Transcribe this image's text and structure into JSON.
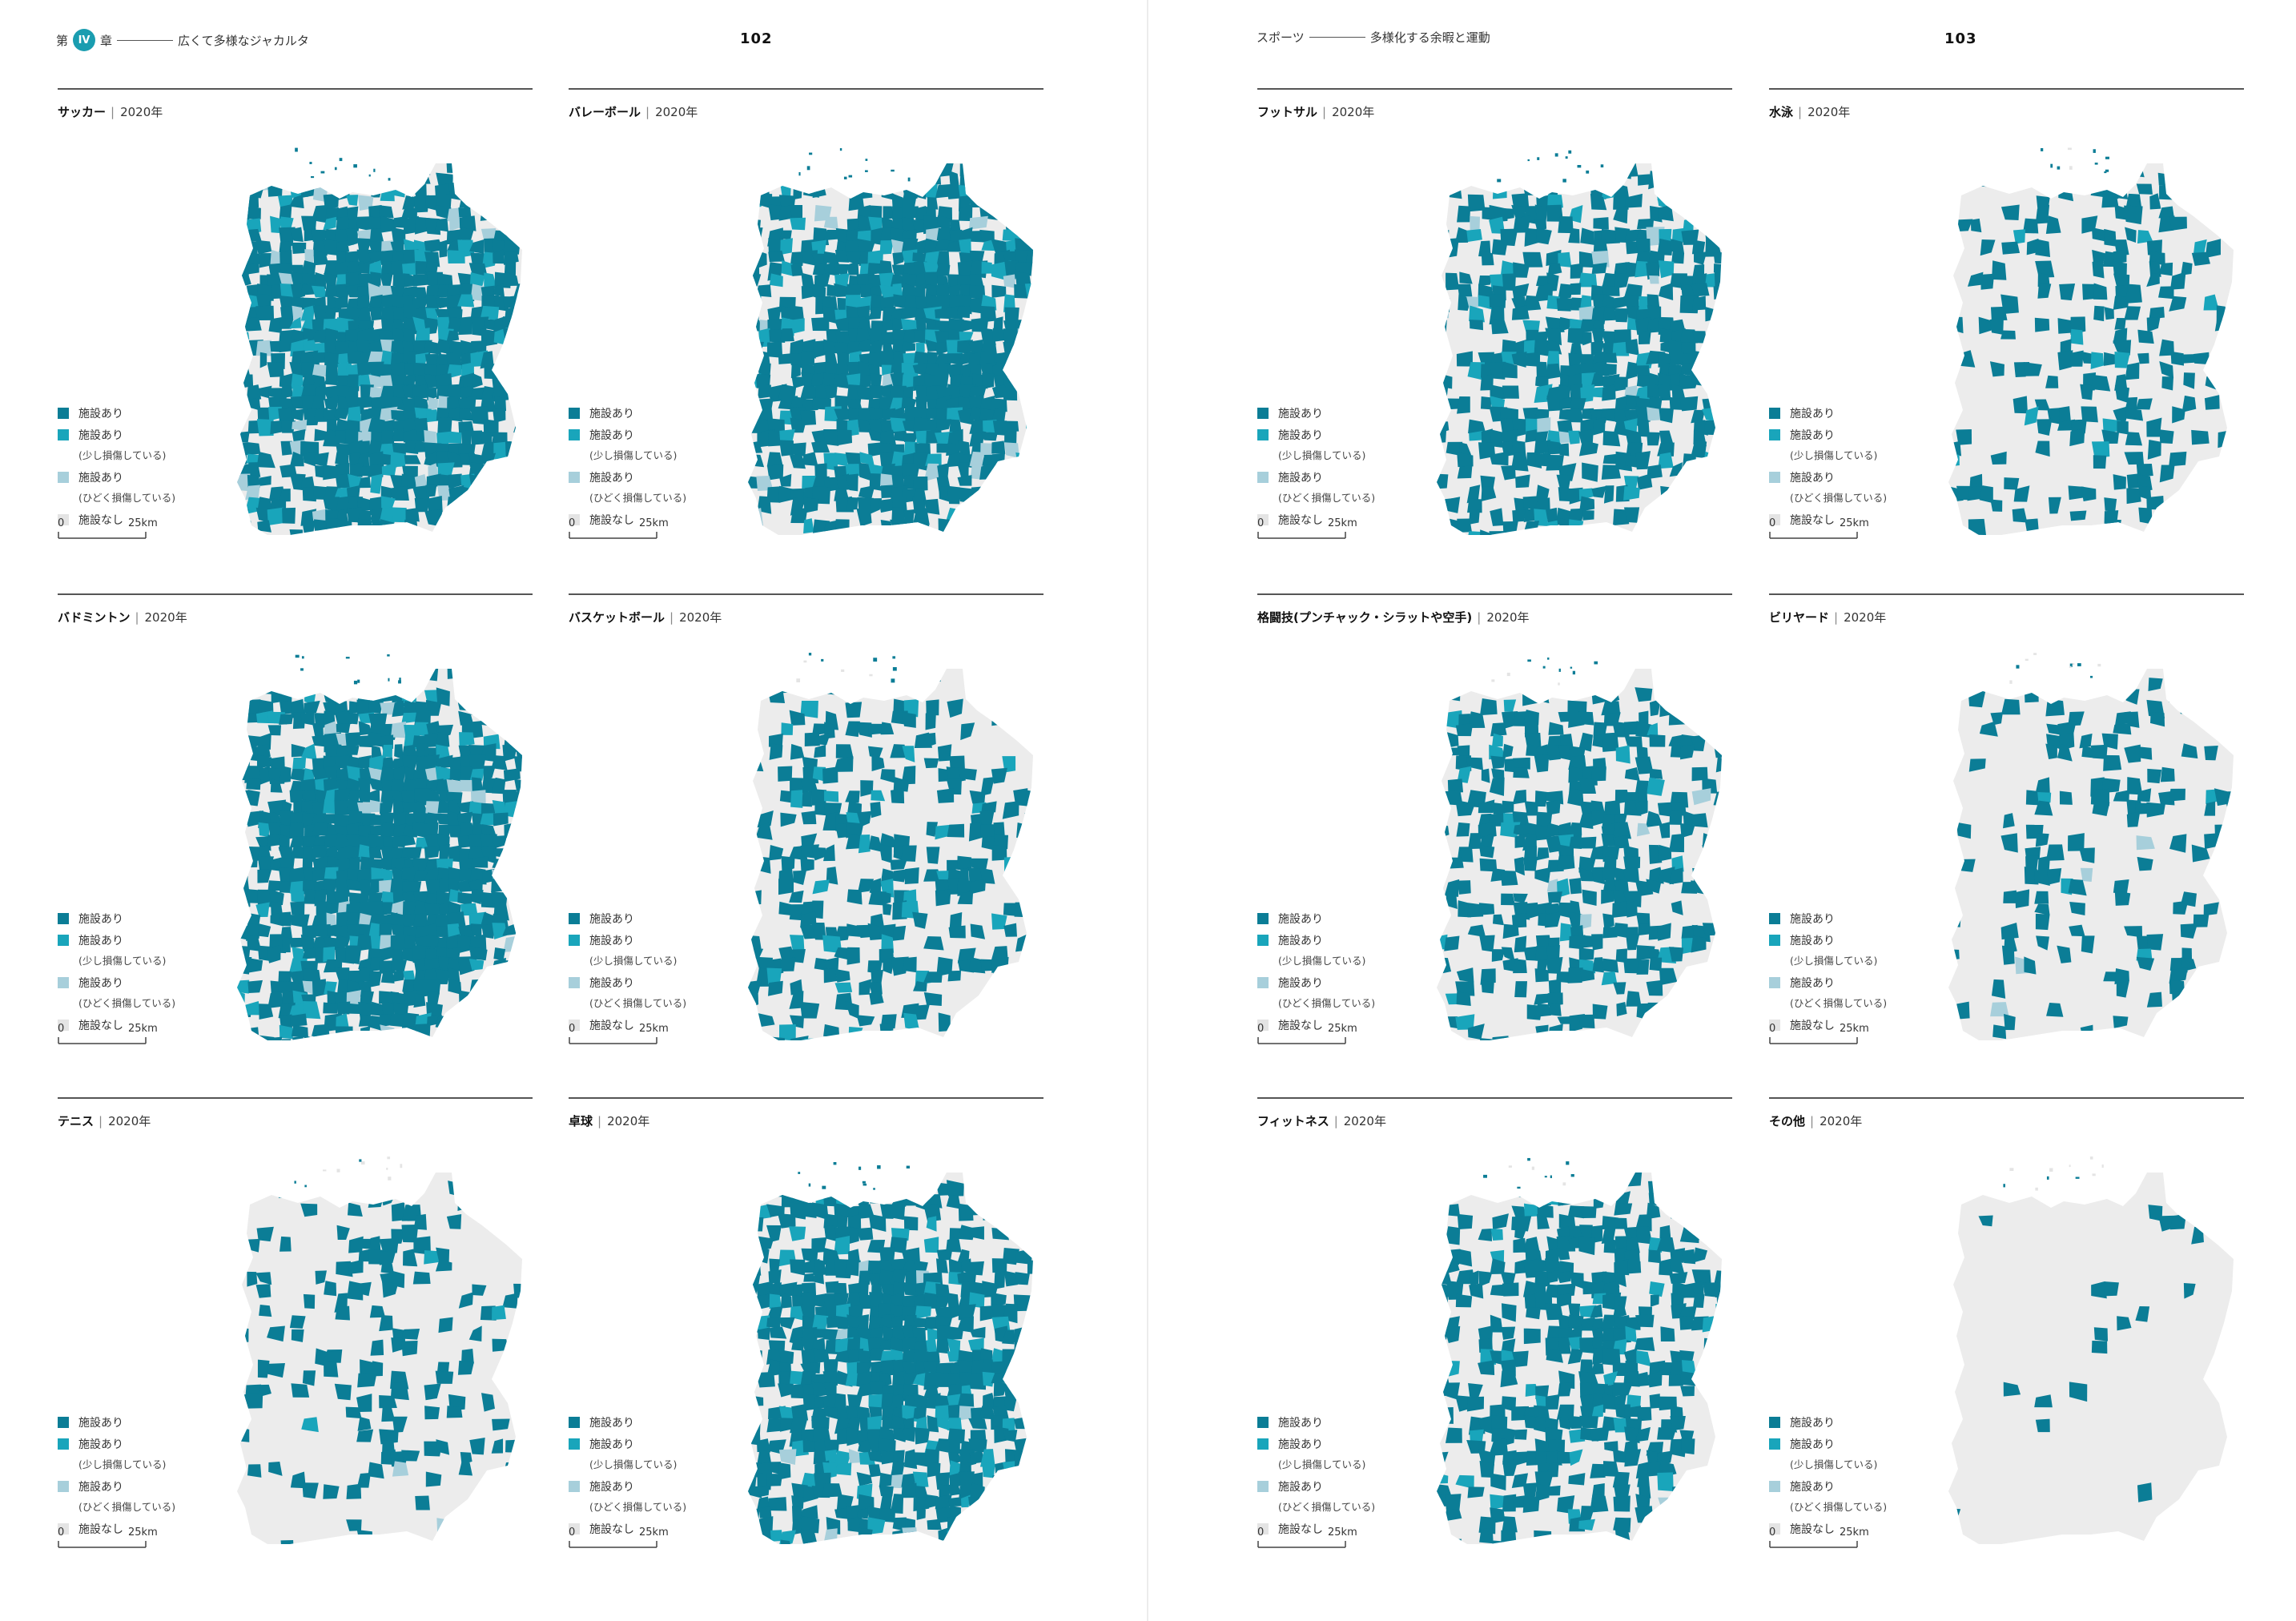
{
  "colors": {
    "with_facility": "#0b7d96",
    "slightly_damaged": "#19a5bb",
    "heavily_damaged": "#a7cfdb",
    "no_facility": "#e4e4e4",
    "base_map": "#ececec",
    "accent": "#1a9db0"
  },
  "left_page": {
    "chapter_prefix": "第",
    "chapter_number": "IV",
    "chapter_suffix": "章",
    "running_title": "広くて多様なジャカルタ",
    "page_number": "102"
  },
  "right_page": {
    "running_title_a": "スポーツ",
    "running_title_b": "多様化する余暇と運動",
    "page_number": "103"
  },
  "legend": {
    "with": "施設あり",
    "slight": "施設あり",
    "slight_note": "(少し損傷している)",
    "heavy": "施設あり",
    "heavy_note": "(ひどく損傷している)",
    "none": "施設なし"
  },
  "scale": {
    "start": "0",
    "end": "25km"
  },
  "maps": [
    {
      "sport": "サッカー",
      "year": "2020年",
      "coverage": 0.93,
      "heavy_share": 0.05
    },
    {
      "sport": "バレーボール",
      "year": "2020年",
      "coverage": 0.9,
      "heavy_share": 0.05
    },
    {
      "sport": "フットサル",
      "year": "2020年",
      "coverage": 0.62,
      "heavy_share": 0.02
    },
    {
      "sport": "水泳",
      "year": "2020年",
      "coverage": 0.28,
      "heavy_share": 0.0
    },
    {
      "sport": "バドミントン",
      "year": "2020年",
      "coverage": 0.96,
      "heavy_share": 0.03
    },
    {
      "sport": "バスケットボール",
      "year": "2020年",
      "coverage": 0.4,
      "heavy_share": 0.0
    },
    {
      "sport": "格闘技(プンチャック・シラットや空手)",
      "year": "2020年",
      "coverage": 0.52,
      "heavy_share": 0.02
    },
    {
      "sport": "ビリヤード",
      "year": "2020年",
      "coverage": 0.22,
      "heavy_share": 0.02
    },
    {
      "sport": "テニス",
      "year": "2020年",
      "coverage": 0.22,
      "heavy_share": 0.02
    },
    {
      "sport": "卓球",
      "year": "2020年",
      "coverage": 0.78,
      "heavy_share": 0.02
    },
    {
      "sport": "フィットネス",
      "year": "2020年",
      "coverage": 0.55,
      "heavy_share": 0.01
    },
    {
      "sport": "その他",
      "year": "2020年",
      "coverage": 0.03,
      "heavy_share": 0.0
    }
  ]
}
